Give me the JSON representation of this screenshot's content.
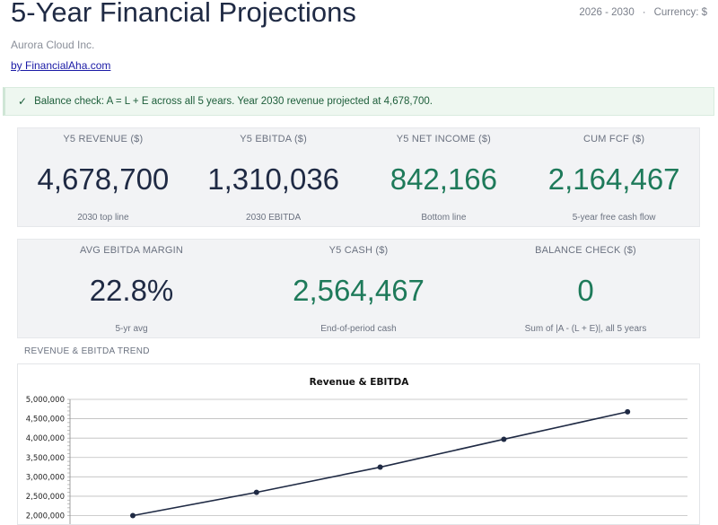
{
  "header": {
    "title": "5-Year Financial Projections",
    "company": "Aurora Cloud Inc.",
    "link_text": "by FinancialAha.com",
    "period": "2026 - 2030",
    "separator": "·",
    "currency": "Currency: $"
  },
  "banner": {
    "icon": "check-icon",
    "text": "Balance check: A = L + E across all 5 years. Year 2030 revenue projected at 4,678,700."
  },
  "kpis_row1": [
    {
      "label": "Y5 REVENUE ($)",
      "value": "4,678,700",
      "sub": "2030 top line",
      "color": "#1f2a44"
    },
    {
      "label": "Y5 EBITDA ($)",
      "value": "1,310,036",
      "sub": "2030 EBITDA",
      "color": "#1f2a44"
    },
    {
      "label": "Y5 NET INCOME ($)",
      "value": "842,166",
      "sub": "Bottom line",
      "color": "#1e7a5a"
    },
    {
      "label": "CUM FCF ($)",
      "value": "2,164,467",
      "sub": "5-year free cash flow",
      "color": "#1e7a5a"
    }
  ],
  "kpis_row2": [
    {
      "label": "AVG EBITDA MARGIN",
      "value": "22.8%",
      "sub": "5-yr avg",
      "color": "#1f2a44"
    },
    {
      "label": "Y5 CASH ($)",
      "value": "2,564,467",
      "sub": "End-of-period cash",
      "color": "#1e7a5a"
    },
    {
      "label": "BALANCE CHECK ($)",
      "value": "0",
      "sub": "Sum of |A - (L + E)|, all 5 years",
      "color": "#1e7a5a"
    }
  ],
  "chart_section_title": "REVENUE & EBITDA TREND",
  "chart_data": {
    "type": "line",
    "title": "Revenue & EBITDA",
    "y_ticks": [
      "5,000,000",
      "4,500,000",
      "4,000,000",
      "3,500,000",
      "3,000,000",
      "2,500,000",
      "2,000,000"
    ],
    "ylim": [
      2000000,
      5000000
    ],
    "grid": true,
    "series": [
      {
        "values": [
          2000000,
          2600000,
          3250000,
          3970000,
          4678700
        ]
      }
    ]
  }
}
